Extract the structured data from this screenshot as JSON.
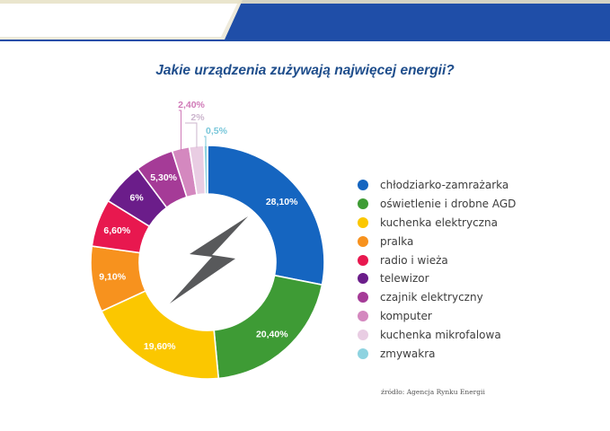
{
  "chart_data": {
    "type": "donut",
    "title": "Jakie urządzenia zużywają najwięcej energii?",
    "categories": [
      "chłodziarko-zamrażarka",
      "oświetlenie i drobne AGD",
      "kuchenka elektryczna",
      "pralka",
      "radio i wieża",
      "telewizor",
      "czajnik elektryczny",
      "komputer",
      "kuchenka mikrofalowa",
      "zmywakra"
    ],
    "values": [
      28.1,
      20.4,
      19.6,
      9.1,
      6.6,
      6.0,
      5.3,
      2.4,
      2.0,
      0.5
    ],
    "data_labels": [
      "28,10%",
      "20,40%",
      "19,60%",
      "9,10%",
      "6,60%",
      "6%",
      "5,30%",
      "2,40%",
      "2%",
      "0,5%"
    ],
    "colors": [
      "#1565c0",
      "#3e9b35",
      "#fbc700",
      "#f7921e",
      "#e8184f",
      "#6b1d8a",
      "#a53b97",
      "#d488bf",
      "#e9cde3",
      "#8ed3e0"
    ],
    "label_colors": [
      "#ffffff",
      "#ffffff",
      "#ffffff",
      "#ffffff",
      "#ffffff",
      "#ffffff",
      "#ffffff",
      "#d07ab8",
      "#ccb6ce",
      "#79c7da"
    ],
    "legend_position": "right"
  },
  "header": {
    "band_color": "#1f4ea8",
    "cream_color": "#eeeadb"
  },
  "center_icon": "lightning-bolt-icon",
  "source_note": "źródło: Agencja Rynku Energii"
}
